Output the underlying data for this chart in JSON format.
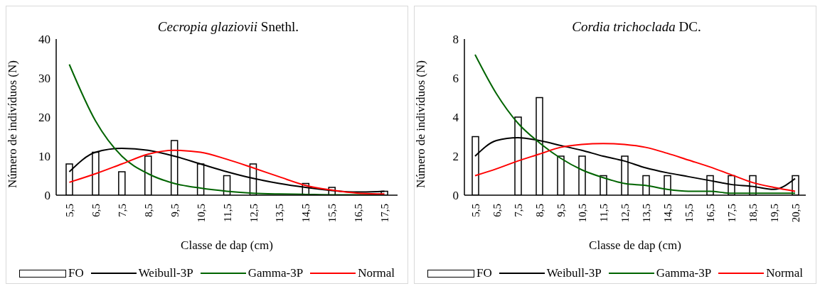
{
  "chart_data": [
    {
      "type": "bar",
      "title": "Cecropia glaziovii Snethl.",
      "xlabel": "Classe de dap (cm)",
      "ylabel": "Número de indivíduos (N)",
      "categories": [
        "5,5",
        "6,5",
        "7,5",
        "8,5",
        "9,5",
        "10,5",
        "11,5",
        "12,5",
        "13,5",
        "14,5",
        "15,5",
        "16,5",
        "17,5"
      ],
      "ylim": [
        0,
        40
      ],
      "yticks": [
        0,
        10,
        20,
        30,
        40
      ],
      "grid": false,
      "legend": "bottom",
      "series": [
        {
          "name": "FO",
          "color": "#ffffff",
          "values": [
            8,
            11,
            6,
            10,
            14,
            8,
            5,
            8,
            0,
            3,
            2,
            0,
            1
          ]
        },
        {
          "name": "Weibull-3P",
          "type": "line",
          "color": "#000000",
          "values": [
            6,
            11,
            12,
            11.5,
            10,
            8,
            6,
            4.3,
            3,
            2,
            1.2,
            0.8,
            1
          ]
        },
        {
          "name": "Gamma-3P",
          "type": "line",
          "color": "#006400",
          "values": [
            33.5,
            19,
            10,
            5.5,
            3,
            1.8,
            1,
            0.5,
            0.3,
            0.2,
            0.1,
            0.1,
            0
          ]
        },
        {
          "name": "Normal",
          "type": "line",
          "color": "#ff0000",
          "values": [
            3.3,
            5.5,
            8,
            10.5,
            11.5,
            11,
            9.2,
            7,
            4.7,
            2.5,
            1.3,
            0.5,
            0.3
          ]
        }
      ]
    },
    {
      "type": "bar",
      "title": "Cordia trichoclada DC.",
      "xlabel": "Classe de dap (cm)",
      "ylabel": "Número de indivíduos (N)",
      "categories": [
        "5,5",
        "6,5",
        "7,5",
        "8,5",
        "9,5",
        "10,5",
        "11,5",
        "12,5",
        "13,5",
        "14,5",
        "15,5",
        "16,5",
        "17,5",
        "18,5",
        "19,5",
        "20,5"
      ],
      "ylim": [
        0,
        8
      ],
      "yticks": [
        0,
        2,
        4,
        6,
        8
      ],
      "grid": false,
      "legend": "bottom",
      "series": [
        {
          "name": "FO",
          "color": "#ffffff",
          "values": [
            3,
            0,
            4,
            5,
            2,
            2,
            1,
            2,
            1,
            1,
            0,
            1,
            1,
            1,
            0,
            1
          ]
        },
        {
          "name": "Weibull-3P",
          "type": "line",
          "color": "#000000",
          "values": [
            2,
            2.8,
            2.95,
            2.8,
            2.55,
            2.3,
            2.0,
            1.75,
            1.4,
            1.15,
            0.95,
            0.75,
            0.55,
            0.45,
            0.3,
            0.85
          ]
        },
        {
          "name": "Gamma-3P",
          "type": "line",
          "color": "#006400",
          "values": [
            7.2,
            5.2,
            3.7,
            2.7,
            1.9,
            1.3,
            0.9,
            0.6,
            0.5,
            0.3,
            0.2,
            0.2,
            0.1,
            0.1,
            0.1,
            0.1
          ]
        },
        {
          "name": "Normal",
          "type": "line",
          "color": "#ff0000",
          "values": [
            1,
            1.35,
            1.75,
            2.1,
            2.45,
            2.6,
            2.65,
            2.6,
            2.45,
            2.15,
            1.8,
            1.45,
            1.05,
            0.65,
            0.4,
            0.2
          ]
        }
      ]
    }
  ]
}
